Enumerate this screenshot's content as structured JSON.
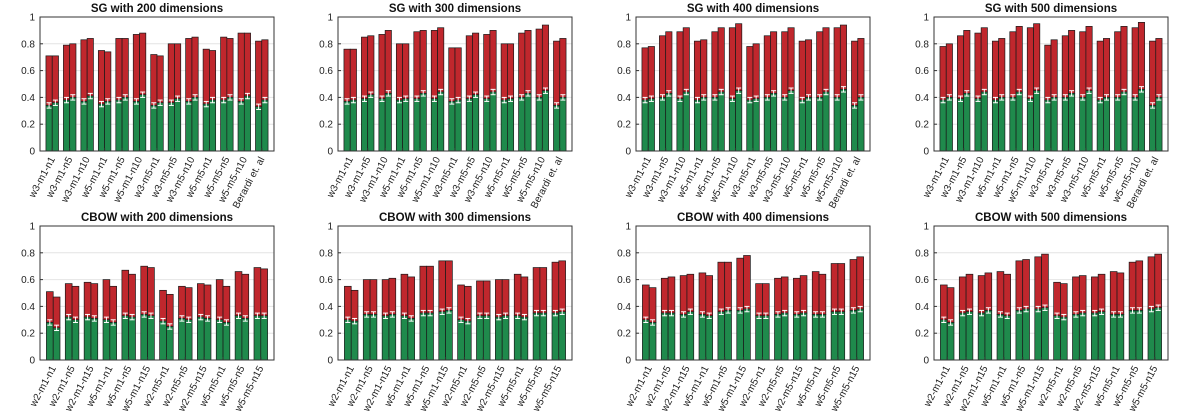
{
  "colors": {
    "top": "#c0272d",
    "bottom": "#1f8a4c",
    "outline": "#1a1a1a",
    "error": "#ffffff"
  },
  "chart_data": [
    {
      "type": "bar",
      "title": "SG with 200 dimensions",
      "ylim": [
        0,
        1
      ],
      "yticks": [
        "0",
        "0.2",
        "0.4",
        "0.6",
        "0.8",
        "1"
      ],
      "grid": true,
      "categories": [
        "w3-m1-n1",
        "w3-m1-n5",
        "w3-m1-n10",
        "w5-m1-n1",
        "w5-m1-n5",
        "w5-m1-n10",
        "w3-m5-n1",
        "w3-m5-n5",
        "w3-m5-n10",
        "w5-m5-n1",
        "w5-m5-n5",
        "w5-m5-n10",
        "Berardi et. al"
      ],
      "series": [
        {
          "values": [
            [
              0.34,
              0.36
            ],
            [
              0.38,
              0.4
            ],
            [
              0.37,
              0.41
            ],
            [
              0.35,
              0.37
            ],
            [
              0.38,
              0.4
            ],
            [
              0.37,
              0.42
            ],
            [
              0.34,
              0.36
            ],
            [
              0.36,
              0.39
            ],
            [
              0.37,
              0.4
            ],
            [
              0.35,
              0.38
            ],
            [
              0.38,
              0.4
            ],
            [
              0.37,
              0.41
            ],
            [
              0.33,
              0.38
            ]
          ]
        },
        {
          "values": [
            [
              0.71,
              0.71
            ],
            [
              0.79,
              0.8
            ],
            [
              0.83,
              0.84
            ],
            [
              0.75,
              0.74
            ],
            [
              0.84,
              0.84
            ],
            [
              0.87,
              0.88
            ],
            [
              0.72,
              0.71
            ],
            [
              0.8,
              0.8
            ],
            [
              0.84,
              0.85
            ],
            [
              0.76,
              0.75
            ],
            [
              0.85,
              0.84
            ],
            [
              0.88,
              0.88
            ],
            [
              0.82,
              0.83
            ]
          ]
        }
      ]
    },
    {
      "type": "bar",
      "title": "SG with 300 dimensions",
      "ylim": [
        0,
        1
      ],
      "yticks": [
        "0",
        "0.2",
        "0.4",
        "0.6",
        "0.8",
        "1"
      ],
      "grid": true,
      "categories": [
        "w3-m1-n1",
        "w3-m1-n5",
        "w3-m1-n10",
        "w5-m1-n1",
        "w5-m1-n5",
        "w5-m1-n10",
        "w3-m5-n1",
        "w3-m5-n5",
        "w3-m5-n10",
        "w5-m5-n1",
        "w5-m5-n5",
        "w5-m5-n10",
        "Berardi et. al"
      ],
      "series": [
        {
          "values": [
            [
              0.37,
              0.38
            ],
            [
              0.39,
              0.42
            ],
            [
              0.39,
              0.43
            ],
            [
              0.38,
              0.39
            ],
            [
              0.39,
              0.43
            ],
            [
              0.39,
              0.44
            ],
            [
              0.37,
              0.38
            ],
            [
              0.39,
              0.42
            ],
            [
              0.39,
              0.44
            ],
            [
              0.38,
              0.39
            ],
            [
              0.4,
              0.43
            ],
            [
              0.4,
              0.45
            ],
            [
              0.34,
              0.4
            ]
          ]
        },
        {
          "values": [
            [
              0.76,
              0.76
            ],
            [
              0.85,
              0.86
            ],
            [
              0.87,
              0.9
            ],
            [
              0.8,
              0.8
            ],
            [
              0.89,
              0.9
            ],
            [
              0.9,
              0.92
            ],
            [
              0.77,
              0.77
            ],
            [
              0.86,
              0.88
            ],
            [
              0.87,
              0.9
            ],
            [
              0.8,
              0.8
            ],
            [
              0.88,
              0.9
            ],
            [
              0.91,
              0.94
            ],
            [
              0.82,
              0.84
            ]
          ]
        }
      ]
    },
    {
      "type": "bar",
      "title": "SG with 400 dimensions",
      "ylim": [
        0,
        1
      ],
      "yticks": [
        "0",
        "0.2",
        "0.4",
        "0.6",
        "0.8",
        "1"
      ],
      "grid": true,
      "categories": [
        "w3-m1-n1",
        "w3-m1-n5",
        "w3-m1-n10",
        "w5-m1-n1",
        "w5-m1-n5",
        "w5-m1-n10",
        "w3-m5-n1",
        "w3-m5-n5",
        "w3-m5-n10",
        "w5-m5-n1",
        "w5-m5-n5",
        "w5-m5-n10",
        "Berardi et. al"
      ],
      "series": [
        {
          "values": [
            [
              0.38,
              0.39
            ],
            [
              0.4,
              0.43
            ],
            [
              0.39,
              0.44
            ],
            [
              0.38,
              0.4
            ],
            [
              0.4,
              0.44
            ],
            [
              0.39,
              0.45
            ],
            [
              0.38,
              0.39
            ],
            [
              0.4,
              0.43
            ],
            [
              0.4,
              0.45
            ],
            [
              0.38,
              0.4
            ],
            [
              0.4,
              0.44
            ],
            [
              0.4,
              0.46
            ],
            [
              0.34,
              0.4
            ]
          ]
        },
        {
          "values": [
            [
              0.77,
              0.78
            ],
            [
              0.86,
              0.89
            ],
            [
              0.89,
              0.92
            ],
            [
              0.82,
              0.83
            ],
            [
              0.89,
              0.92
            ],
            [
              0.92,
              0.95
            ],
            [
              0.78,
              0.8
            ],
            [
              0.86,
              0.89
            ],
            [
              0.89,
              0.92
            ],
            [
              0.82,
              0.83
            ],
            [
              0.89,
              0.92
            ],
            [
              0.92,
              0.94
            ],
            [
              0.82,
              0.84
            ]
          ]
        }
      ]
    },
    {
      "type": "bar",
      "title": "SG with 500 dimensions",
      "ylim": [
        0,
        1
      ],
      "yticks": [
        "0",
        "0.2",
        "0.4",
        "0.6",
        "0.8",
        "1"
      ],
      "grid": true,
      "categories": [
        "w3-m1-n1",
        "w3-m1-n5",
        "w3-m1-n10",
        "w5-m1-n1",
        "w5-m1-n5",
        "w5-m1-n10",
        "w3-m5-n1",
        "w3-m5-n5",
        "w3-m5-n10",
        "w5-m5-n1",
        "w5-m5-n5",
        "w5-m5-n10",
        "Berardi et. al"
      ],
      "series": [
        {
          "values": [
            [
              0.38,
              0.4
            ],
            [
              0.39,
              0.43
            ],
            [
              0.39,
              0.44
            ],
            [
              0.38,
              0.4
            ],
            [
              0.4,
              0.44
            ],
            [
              0.39,
              0.45
            ],
            [
              0.38,
              0.4
            ],
            [
              0.4,
              0.43
            ],
            [
              0.4,
              0.45
            ],
            [
              0.38,
              0.4
            ],
            [
              0.4,
              0.44
            ],
            [
              0.4,
              0.46
            ],
            [
              0.34,
              0.4
            ]
          ]
        },
        {
          "values": [
            [
              0.78,
              0.8
            ],
            [
              0.86,
              0.9
            ],
            [
              0.88,
              0.92
            ],
            [
              0.82,
              0.84
            ],
            [
              0.89,
              0.93
            ],
            [
              0.92,
              0.95
            ],
            [
              0.79,
              0.83
            ],
            [
              0.86,
              0.9
            ],
            [
              0.89,
              0.93
            ],
            [
              0.82,
              0.84
            ],
            [
              0.89,
              0.93
            ],
            [
              0.92,
              0.96
            ],
            [
              0.82,
              0.84
            ]
          ]
        }
      ]
    },
    {
      "type": "bar",
      "title": "CBOW with 200 dimensions",
      "ylim": [
        0,
        1
      ],
      "yticks": [
        "0",
        "0.2",
        "0.4",
        "0.6",
        "0.8",
        "1"
      ],
      "grid": true,
      "categories": [
        "w2-m1-n1",
        "w2-m1-n5",
        "w2-m1-n15",
        "w5-m1-n1",
        "w5-m1-n5",
        "w5-m1-n15",
        "w2-m5-n1",
        "w2-m5-n5",
        "w2-m5-n15",
        "w5-m5-n1",
        "w5-m5-n5",
        "w5-m5-n15"
      ],
      "series": [
        {
          "values": [
            [
              0.28,
              0.24
            ],
            [
              0.32,
              0.3
            ],
            [
              0.32,
              0.31
            ],
            [
              0.3,
              0.28
            ],
            [
              0.33,
              0.32
            ],
            [
              0.34,
              0.33
            ],
            [
              0.29,
              0.25
            ],
            [
              0.31,
              0.3
            ],
            [
              0.32,
              0.31
            ],
            [
              0.3,
              0.28
            ],
            [
              0.33,
              0.31
            ],
            [
              0.33,
              0.33
            ]
          ]
        },
        {
          "values": [
            [
              0.51,
              0.47
            ],
            [
              0.57,
              0.55
            ],
            [
              0.58,
              0.57
            ],
            [
              0.6,
              0.55
            ],
            [
              0.67,
              0.64
            ],
            [
              0.7,
              0.69
            ],
            [
              0.52,
              0.49
            ],
            [
              0.55,
              0.54
            ],
            [
              0.57,
              0.56
            ],
            [
              0.6,
              0.55
            ],
            [
              0.66,
              0.64
            ],
            [
              0.69,
              0.68
            ]
          ]
        }
      ]
    },
    {
      "type": "bar",
      "title": "CBOW with 300 dimensions",
      "ylim": [
        0,
        1
      ],
      "yticks": [
        "0",
        "0.2",
        "0.4",
        "0.6",
        "0.8",
        "1"
      ],
      "grid": true,
      "categories": [
        "w2-m1-n1",
        "w2-m1-n5",
        "w2-m1-n15",
        "w5-m1-n1",
        "w5-m1-n5",
        "w5-m1-n15",
        "w2-m5-n1",
        "w2-m5-n5",
        "w2-m5-n15",
        "w5-m5-n1",
        "w5-m5-n5",
        "w5-m5-n15"
      ],
      "series": [
        {
          "values": [
            [
              0.3,
              0.29
            ],
            [
              0.34,
              0.34
            ],
            [
              0.33,
              0.34
            ],
            [
              0.33,
              0.31
            ],
            [
              0.35,
              0.35
            ],
            [
              0.36,
              0.37
            ],
            [
              0.3,
              0.29
            ],
            [
              0.33,
              0.33
            ],
            [
              0.32,
              0.33
            ],
            [
              0.33,
              0.32
            ],
            [
              0.35,
              0.35
            ],
            [
              0.35,
              0.36
            ]
          ]
        },
        {
          "values": [
            [
              0.55,
              0.52
            ],
            [
              0.6,
              0.6
            ],
            [
              0.6,
              0.61
            ],
            [
              0.64,
              0.62
            ],
            [
              0.7,
              0.7
            ],
            [
              0.74,
              0.74
            ],
            [
              0.56,
              0.55
            ],
            [
              0.59,
              0.59
            ],
            [
              0.6,
              0.6
            ],
            [
              0.64,
              0.62
            ],
            [
              0.69,
              0.69
            ],
            [
              0.73,
              0.74
            ]
          ]
        }
      ]
    },
    {
      "type": "bar",
      "title": "CBOW with 400 dimensions",
      "ylim": [
        0,
        1
      ],
      "yticks": [
        "0",
        "0.2",
        "0.4",
        "0.6",
        "0.8",
        "1"
      ],
      "grid": true,
      "categories": [
        "w2-m1-n1",
        "w2-m1-n5",
        "w2-m1-n15",
        "w5-m1-n1",
        "w5-m1-n5",
        "w5-m1-n15",
        "w2-m5-n1",
        "w2-m5-n5",
        "w2-m5-n15",
        "w5-m5-n1",
        "w5-m5-n5",
        "w5-m5-n15"
      ],
      "series": [
        {
          "values": [
            [
              0.3,
              0.28
            ],
            [
              0.35,
              0.35
            ],
            [
              0.34,
              0.36
            ],
            [
              0.34,
              0.33
            ],
            [
              0.36,
              0.37
            ],
            [
              0.37,
              0.38
            ],
            [
              0.33,
              0.33
            ],
            [
              0.34,
              0.35
            ],
            [
              0.34,
              0.35
            ],
            [
              0.34,
              0.34
            ],
            [
              0.36,
              0.36
            ],
            [
              0.37,
              0.38
            ]
          ]
        },
        {
          "values": [
            [
              0.56,
              0.54
            ],
            [
              0.61,
              0.62
            ],
            [
              0.63,
              0.64
            ],
            [
              0.65,
              0.63
            ],
            [
              0.73,
              0.73
            ],
            [
              0.76,
              0.78
            ],
            [
              0.57,
              0.57
            ],
            [
              0.61,
              0.62
            ],
            [
              0.61,
              0.63
            ],
            [
              0.66,
              0.64
            ],
            [
              0.72,
              0.72
            ],
            [
              0.75,
              0.77
            ]
          ]
        }
      ]
    },
    {
      "type": "bar",
      "title": "CBOW with 500 dimensions",
      "ylim": [
        0,
        1
      ],
      "yticks": [
        "0",
        "0.2",
        "0.4",
        "0.6",
        "0.8",
        "1"
      ],
      "grid": true,
      "categories": [
        "w2-m1-n1",
        "w2-m1-n5",
        "w2-m1-n15",
        "w5-m1-n1",
        "w5-m1-n5",
        "w5-m1-n15",
        "w2-m5-n1",
        "w2-m5-n5",
        "w2-m5-n15",
        "w5-m5-n1",
        "w5-m5-n5",
        "w5-m5-n15"
      ],
      "series": [
        {
          "values": [
            [
              0.3,
              0.28
            ],
            [
              0.35,
              0.36
            ],
            [
              0.35,
              0.37
            ],
            [
              0.34,
              0.33
            ],
            [
              0.37,
              0.38
            ],
            [
              0.38,
              0.39
            ],
            [
              0.33,
              0.32
            ],
            [
              0.34,
              0.35
            ],
            [
              0.35,
              0.36
            ],
            [
              0.34,
              0.34
            ],
            [
              0.37,
              0.37
            ],
            [
              0.38,
              0.39
            ]
          ]
        },
        {
          "values": [
            [
              0.56,
              0.54
            ],
            [
              0.62,
              0.64
            ],
            [
              0.63,
              0.65
            ],
            [
              0.66,
              0.64
            ],
            [
              0.74,
              0.75
            ],
            [
              0.77,
              0.79
            ],
            [
              0.58,
              0.57
            ],
            [
              0.62,
              0.63
            ],
            [
              0.62,
              0.64
            ],
            [
              0.66,
              0.65
            ],
            [
              0.73,
              0.74
            ],
            [
              0.77,
              0.79
            ]
          ]
        }
      ]
    }
  ]
}
